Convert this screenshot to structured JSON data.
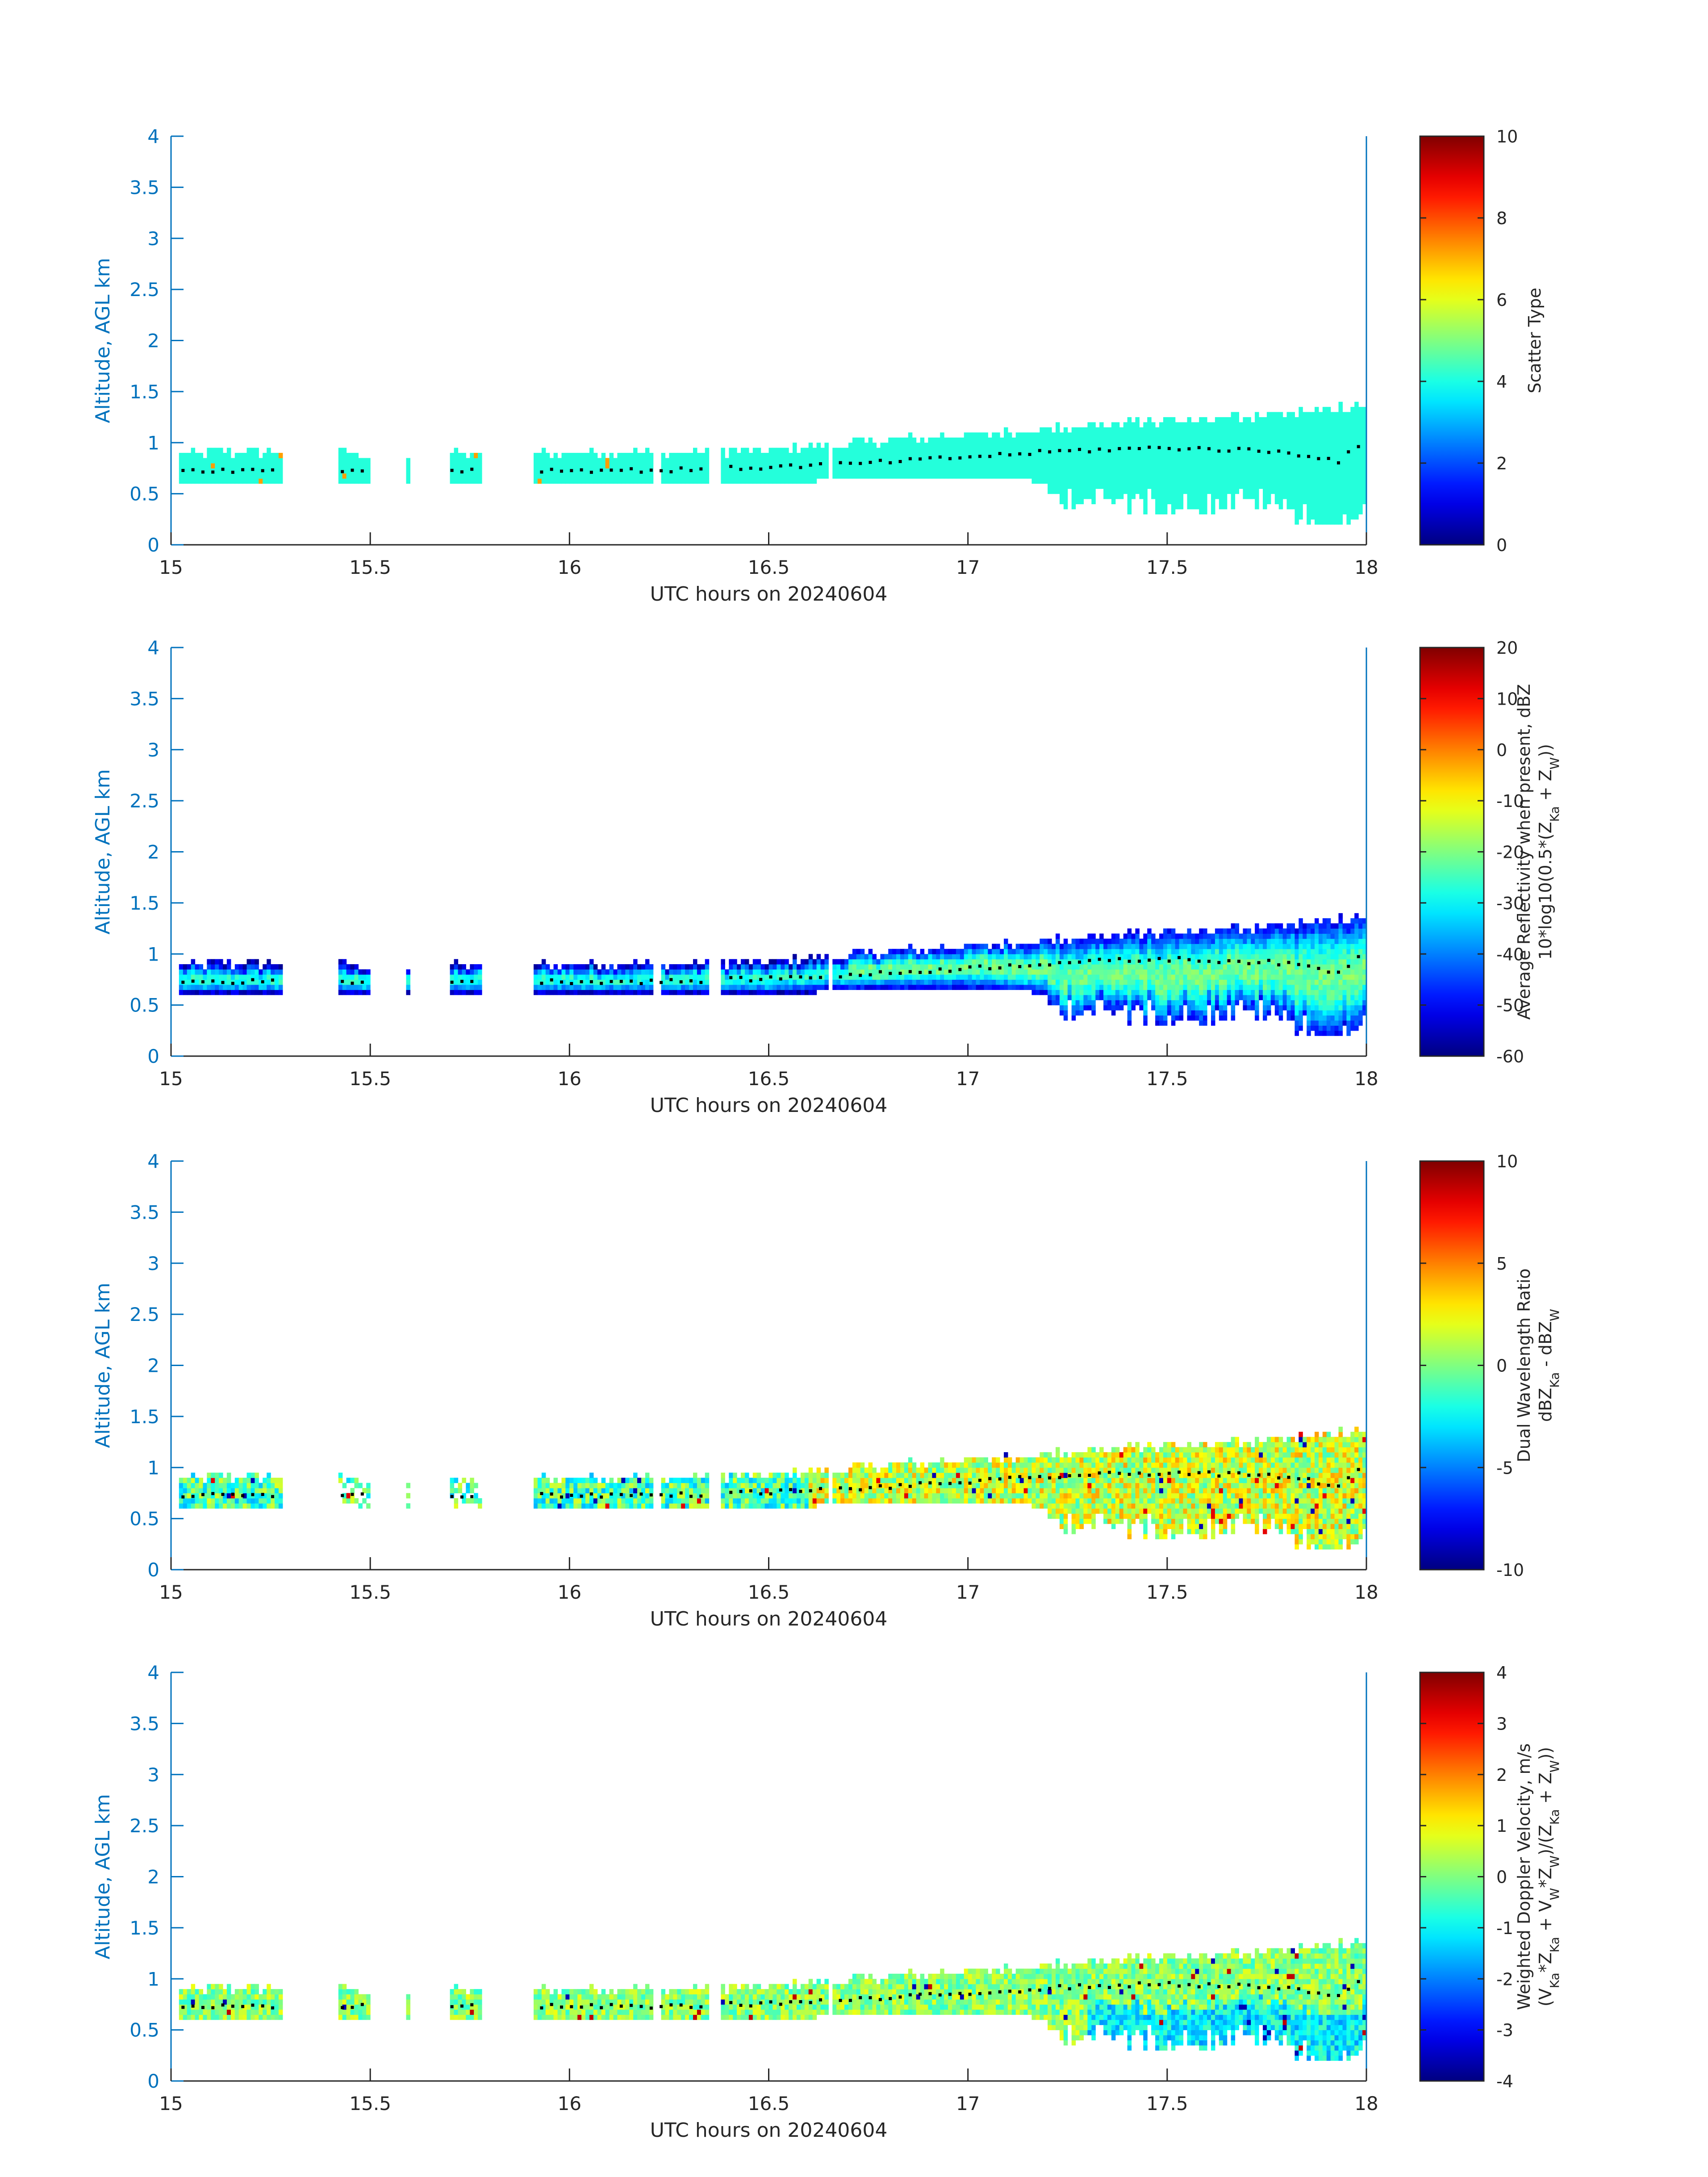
{
  "figure": {
    "colors": {
      "axis_y": "#0072BD",
      "axis_x": "#262626",
      "frame": "#262626",
      "profile_dots": "#000000"
    }
  },
  "chart_data": [
    {
      "type": "heatmap",
      "xlabel": "UTC hours on 20240604",
      "ylabel": "Altitude, AGL km",
      "xlim": [
        15,
        18
      ],
      "ylim": [
        0,
        4
      ],
      "xticks": [
        "15",
        "15.5",
        "16",
        "16.5",
        "17",
        "17.5",
        "18"
      ],
      "yticks": [
        "0",
        "0.5",
        "1",
        "1.5",
        "2",
        "2.5",
        "3",
        "3.5",
        "4"
      ],
      "colorbar": {
        "label_lines": [
          "Scatter Type"
        ],
        "range": [
          0,
          10
        ],
        "ticks": [
          "0",
          "2",
          "4",
          "6",
          "8",
          "10"
        ]
      },
      "field": "scatter_type",
      "colormap": "jet"
    },
    {
      "type": "heatmap",
      "xlabel": "UTC hours on 20240604",
      "ylabel": "Altitude, AGL km",
      "xlim": [
        15,
        18
      ],
      "ylim": [
        0,
        4
      ],
      "xticks": [
        "15",
        "15.5",
        "16",
        "16.5",
        "17",
        "17.5",
        "18"
      ],
      "yticks": [
        "0",
        "0.5",
        "1",
        "1.5",
        "2",
        "2.5",
        "3",
        "3.5",
        "4"
      ],
      "colorbar": {
        "label_lines": [
          "Average Reflectivity when present, dBZ",
          "10*log10(0.5*(Z_Ka + Z_W))"
        ],
        "range": [
          -60,
          20
        ],
        "ticks": [
          "-60",
          "-50",
          "-40",
          "-30",
          "-20",
          "-10",
          "0",
          "10",
          "20"
        ]
      },
      "field": "reflectivity",
      "colormap": "jet"
    },
    {
      "type": "heatmap",
      "xlabel": "UTC hours on 20240604",
      "ylabel": "Altitude, AGL km",
      "xlim": [
        15,
        18
      ],
      "ylim": [
        0,
        4
      ],
      "xticks": [
        "15",
        "15.5",
        "16",
        "16.5",
        "17",
        "17.5",
        "18"
      ],
      "yticks": [
        "0",
        "0.5",
        "1",
        "1.5",
        "2",
        "2.5",
        "3",
        "3.5",
        "4"
      ],
      "colorbar": {
        "label_lines": [
          "Dual Wavelength Ratio",
          "dBZ_Ka - dBZ_W"
        ],
        "range": [
          -10,
          10
        ],
        "ticks": [
          "-10",
          "-5",
          "0",
          "5",
          "10"
        ]
      },
      "field": "dwr",
      "colormap": "jet"
    },
    {
      "type": "heatmap",
      "xlabel": "UTC hours on 20240604",
      "ylabel": "Altitude, AGL km",
      "xlim": [
        15,
        18
      ],
      "ylim": [
        0,
        4
      ],
      "xticks": [
        "15",
        "15.5",
        "16",
        "16.5",
        "17",
        "17.5",
        "18"
      ],
      "yticks": [
        "0",
        "0.5",
        "1",
        "1.5",
        "2",
        "2.5",
        "3",
        "3.5",
        "4"
      ],
      "colorbar": {
        "label_lines": [
          "Weighted Doppler Velocity, m/s",
          "(V_Ka*Z_Ka + V_W*Z_W)/(Z_Ka + Z_W))"
        ],
        "range": [
          -4,
          4
        ],
        "ticks": [
          "-4",
          "-3",
          "-2",
          "-1",
          "0",
          "1",
          "2",
          "3",
          "4"
        ]
      },
      "field": "doppler",
      "colormap": "jet"
    }
  ],
  "cloud_layer": {
    "segments": [
      [
        15.02,
        15.28
      ],
      [
        15.42,
        15.5
      ],
      [
        15.59,
        15.6
      ],
      [
        15.7,
        15.78
      ],
      [
        15.91,
        16.21
      ],
      [
        16.23,
        16.35
      ],
      [
        16.38,
        16.65
      ],
      [
        16.66,
        18.0
      ]
    ],
    "profile": {
      "x": [
        15.0,
        15.25,
        15.5,
        15.75,
        16.0,
        16.25,
        16.5,
        16.75,
        17.0,
        17.25,
        17.5,
        17.75,
        17.85,
        17.93,
        18.0
      ],
      "top": [
        0.88,
        0.88,
        0.86,
        0.86,
        0.88,
        0.88,
        0.9,
        0.98,
        1.05,
        1.12,
        1.18,
        1.25,
        1.28,
        1.32,
        1.3
      ],
      "base": [
        0.62,
        0.62,
        0.62,
        0.62,
        0.62,
        0.62,
        0.62,
        0.68,
        0.7,
        0.62,
        0.55,
        0.58,
        0.45,
        0.25,
        0.6
      ],
      "cloud_base_height": [
        0.73,
        0.73,
        0.73,
        0.73,
        0.73,
        0.73,
        0.76,
        0.8,
        0.86,
        0.92,
        0.95,
        0.92,
        0.88,
        0.82,
        1.02
      ]
    }
  }
}
